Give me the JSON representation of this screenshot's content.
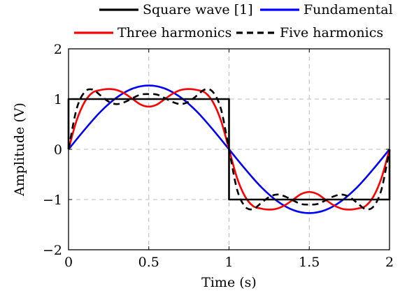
{
  "chart_data": {
    "type": "line",
    "xlabel": "Time (s)",
    "ylabel": "Amplitude (V)",
    "xlim": [
      0,
      2
    ],
    "ylim": [
      -2,
      2
    ],
    "xticks": [
      0,
      0.5,
      1,
      1.5,
      2
    ],
    "xtick_labels": [
      "0",
      "0.5",
      "1",
      "1.5",
      "2"
    ],
    "yticks": [
      -2,
      -1,
      0,
      1,
      2
    ],
    "ytick_labels": [
      "−2",
      "−1",
      "0",
      "1",
      "2"
    ],
    "grid": true,
    "legend_position": "top-outside",
    "series": [
      {
        "name": "Square wave [1]",
        "color": "#000000",
        "style": "solid",
        "x": [
          0,
          0,
          1,
          1,
          2,
          2
        ],
        "y": [
          0,
          1,
          1,
          -1,
          -1,
          0
        ]
      },
      {
        "name": "Fundamental",
        "color": "#0000ff",
        "style": "solid",
        "x": [
          0,
          0.1,
          0.2,
          0.3,
          0.4,
          0.5,
          0.6,
          0.7,
          0.8,
          0.9,
          1.0,
          1.1,
          1.2,
          1.3,
          1.4,
          1.5,
          1.6,
          1.7,
          1.8,
          1.9,
          2.0
        ],
        "y": [
          0,
          0.39,
          0.75,
          1.03,
          1.21,
          1.27,
          1.21,
          1.03,
          0.75,
          0.39,
          0,
          -0.39,
          -0.75,
          -1.03,
          -1.21,
          -1.27,
          -1.21,
          -1.03,
          -0.75,
          -0.39,
          0
        ]
      },
      {
        "name": "Three harmonics",
        "color": "#ff0000",
        "style": "solid",
        "x": [
          0,
          0.05,
          0.1,
          0.15,
          0.2,
          0.25,
          0.3,
          0.35,
          0.4,
          0.45,
          0.5,
          0.55,
          0.6,
          0.65,
          0.7,
          0.75,
          0.8,
          0.85,
          0.9,
          0.95,
          1.0,
          1.05,
          1.1,
          1.15,
          1.2,
          1.25,
          1.3,
          1.35,
          1.4,
          1.45,
          1.5,
          1.55,
          1.6,
          1.65,
          1.7,
          1.75,
          1.8,
          1.85,
          1.9,
          1.95,
          2.0
        ],
        "y": [
          0,
          0.57,
          0.94,
          1.13,
          1.18,
          1.2,
          1.18,
          1.11,
          1.0,
          0.89,
          0.85,
          0.89,
          1.0,
          1.11,
          1.18,
          1.2,
          1.18,
          1.13,
          0.94,
          0.57,
          0,
          -0.57,
          -0.94,
          -1.13,
          -1.18,
          -1.2,
          -1.18,
          -1.11,
          -1.0,
          -0.89,
          -0.85,
          -0.89,
          -1.0,
          -1.11,
          -1.18,
          -1.2,
          -1.18,
          -1.13,
          -0.94,
          -0.57,
          0
        ]
      },
      {
        "name": "Five harmonics",
        "color": "#000000",
        "style": "dashed",
        "x": [
          0,
          0.05,
          0.1,
          0.15,
          0.2,
          0.25,
          0.3,
          0.35,
          0.4,
          0.45,
          0.5,
          0.55,
          0.6,
          0.65,
          0.7,
          0.75,
          0.8,
          0.85,
          0.9,
          0.95,
          1.0,
          1.05,
          1.1,
          1.15,
          1.2,
          1.25,
          1.3,
          1.35,
          1.4,
          1.45,
          1.5,
          1.55,
          1.6,
          1.65,
          1.7,
          1.75,
          1.8,
          1.85,
          1.9,
          1.95,
          2.0
        ],
        "y": [
          0,
          0.8,
          1.14,
          1.19,
          1.07,
          0.95,
          0.9,
          0.94,
          1.02,
          1.09,
          1.1,
          1.09,
          1.02,
          0.94,
          0.9,
          0.95,
          1.07,
          1.19,
          1.14,
          0.8,
          0,
          -0.8,
          -1.14,
          -1.19,
          -1.07,
          -0.95,
          -0.9,
          -0.94,
          -1.02,
          -1.09,
          -1.1,
          -1.09,
          -1.02,
          -0.94,
          -0.9,
          -0.95,
          -1.07,
          -1.19,
          -1.14,
          -0.8,
          0
        ]
      }
    ]
  }
}
